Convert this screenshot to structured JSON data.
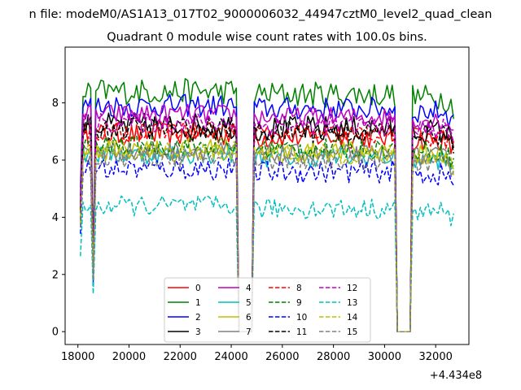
{
  "chart_data": {
    "type": "line",
    "suptitle": "n file: modeM0/AS1A13_017T02_9000006032_44947cztM0_level2_quad_clean",
    "title": "Quadrant 0 module wise count rates with 100.0s bins.",
    "xlabel": "",
    "ylabel": "",
    "x_offset_label": "+4.434e8",
    "xlim": [
      17500,
      33300
    ],
    "ylim": [
      -0.45,
      9.95
    ],
    "xticks": [
      18000,
      20000,
      22000,
      24000,
      26000,
      28000,
      30000,
      32000
    ],
    "yticks": [
      0,
      2,
      4,
      6,
      8
    ],
    "grid": false,
    "legend": {
      "placement": "lower-center",
      "ncol": 4
    },
    "segments": [
      [
        18100,
        24250
      ],
      [
        24850,
        30450
      ],
      [
        31100,
        32750
      ]
    ],
    "gaps": [
      [
        18200,
        18550
      ],
      [
        24250,
        24750
      ],
      [
        30450,
        31000
      ]
    ],
    "series": [
      {
        "name": "0",
        "color": "#ff0000",
        "dash": "solid",
        "level": 6.9,
        "amp": 0.4
      },
      {
        "name": "1",
        "color": "#008000",
        "dash": "solid",
        "level": 8.4,
        "amp": 0.45
      },
      {
        "name": "2",
        "color": "#0000ff",
        "dash": "solid",
        "level": 7.9,
        "amp": 0.4
      },
      {
        "name": "3",
        "color": "#000000",
        "dash": "solid",
        "level": 7.2,
        "amp": 0.45
      },
      {
        "name": "4",
        "color": "#bf00bf",
        "dash": "solid",
        "level": 7.6,
        "amp": 0.35
      },
      {
        "name": "5",
        "color": "#00bfbf",
        "dash": "solid",
        "level": 6.2,
        "amp": 0.35
      },
      {
        "name": "6",
        "color": "#bfbf00",
        "dash": "solid",
        "level": 6.4,
        "amp": 0.35
      },
      {
        "name": "7",
        "color": "#808080",
        "dash": "solid",
        "level": 6.3,
        "amp": 0.35
      },
      {
        "name": "8",
        "color": "#ff0000",
        "dash": "dashed",
        "level": 7.0,
        "amp": 0.35
      },
      {
        "name": "9",
        "color": "#008000",
        "dash": "dashed",
        "level": 6.5,
        "amp": 0.35
      },
      {
        "name": "10",
        "color": "#0000ff",
        "dash": "dashed",
        "level": 5.7,
        "amp": 0.4
      },
      {
        "name": "11",
        "color": "#000000",
        "dash": "dashed",
        "level": 7.1,
        "amp": 0.4
      },
      {
        "name": "12",
        "color": "#bf00bf",
        "dash": "dashed",
        "level": 7.3,
        "amp": 0.35
      },
      {
        "name": "13",
        "color": "#00bfbf",
        "dash": "dashed",
        "level": 4.4,
        "amp": 0.35
      },
      {
        "name": "14",
        "color": "#bfbf00",
        "dash": "dashed",
        "level": 6.3,
        "amp": 0.35
      },
      {
        "name": "15",
        "color": "#808080",
        "dash": "dashed",
        "level": 6.1,
        "amp": 0.35
      }
    ]
  }
}
